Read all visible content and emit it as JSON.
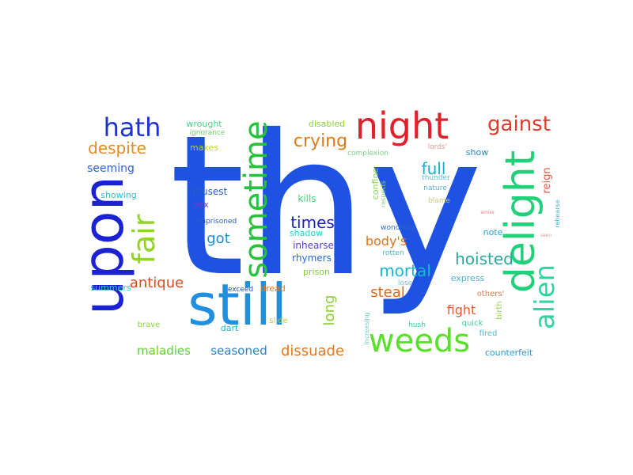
{
  "words": [
    {
      "text": "thy",
      "color": "#1e52e0"
    },
    {
      "text": "still",
      "color": "#1f8fe0"
    },
    {
      "text": "upon",
      "color": "#1a22d4"
    },
    {
      "text": "delight",
      "color": "#22d07a"
    },
    {
      "text": "night",
      "color": "#e0202a"
    },
    {
      "text": "sometime",
      "color": "#26c23a"
    },
    {
      "text": "weeds",
      "color": "#58e02a"
    },
    {
      "text": "alien",
      "color": "#2ed69a"
    },
    {
      "text": "fair",
      "color": "#8fd426"
    },
    {
      "text": "hath",
      "color": "#1a32d8"
    },
    {
      "text": "gainst",
      "color": "#e03a2a"
    },
    {
      "text": "crying",
      "color": "#e07a1a"
    },
    {
      "text": "despite",
      "color": "#e88a22"
    },
    {
      "text": "full",
      "color": "#1ab0c8"
    },
    {
      "text": "times",
      "color": "#1a22c0"
    },
    {
      "text": "hoisted",
      "color": "#2aa8a0"
    },
    {
      "text": "mortal",
      "color": "#1ab8d0"
    },
    {
      "text": "antique",
      "color": "#e04a1a"
    },
    {
      "text": "body's",
      "color": "#e0741a"
    },
    {
      "text": "steal",
      "color": "#e06a1a"
    },
    {
      "text": "dissuade",
      "color": "#e8761a"
    },
    {
      "text": "got",
      "color": "#1a90d8"
    },
    {
      "text": "long",
      "color": "#8ad032"
    },
    {
      "text": "fight",
      "color": "#e85a2a"
    },
    {
      "text": "seasoned",
      "color": "#2a82d0"
    },
    {
      "text": "maladies",
      "color": "#5ad42a"
    },
    {
      "text": "seeming",
      "color": "#2a64d4"
    },
    {
      "text": "reign",
      "color": "#e05a4a"
    },
    {
      "text": "confine",
      "color": "#8ad05a"
    },
    {
      "text": "refusest",
      "color": "#2a5ad0"
    },
    {
      "text": "wrought",
      "color": "#4acf8a"
    },
    {
      "text": "disabled",
      "color": "#8ad03a"
    },
    {
      "text": "makes",
      "color": "#c0d42a"
    },
    {
      "text": "showing",
      "color": "#2abcd6"
    },
    {
      "text": "show",
      "color": "#1a8ad0"
    },
    {
      "text": "kills",
      "color": "#4ad07a"
    },
    {
      "text": "vex",
      "color": "#7a3ad0"
    },
    {
      "text": "shadow",
      "color": "#2acfd0"
    },
    {
      "text": "inhearse",
      "color": "#5a3ad0"
    },
    {
      "text": "rhymers",
      "color": "#2a6ad0"
    },
    {
      "text": "prison",
      "color": "#7ad03a"
    },
    {
      "text": "note",
      "color": "#2aa0c8"
    },
    {
      "text": "express",
      "color": "#4ab0d0"
    },
    {
      "text": "summers",
      "color": "#2ad0b0"
    },
    {
      "text": "dart",
      "color": "#2ab0c8"
    },
    {
      "text": "counterfeit",
      "color": "#2a9ad0"
    },
    {
      "text": "dread",
      "color": "#e07a2a"
    },
    {
      "text": "birth",
      "color": "#9ad05a"
    },
    {
      "text": "brave",
      "color": "#8ad03a"
    },
    {
      "text": "slide",
      "color": "#aad04a"
    },
    {
      "text": "quick",
      "color": "#3ad0a0"
    },
    {
      "text": "fired",
      "color": "#4ab8d0"
    },
    {
      "text": "others'",
      "color": "#e07a4a"
    },
    {
      "text": "ignorance",
      "color": "#6ad06a"
    },
    {
      "text": "complexion",
      "color": "#7ad08a"
    },
    {
      "text": "thunder",
      "color": "#5ac0d0"
    },
    {
      "text": "respects",
      "color": "#8ad08a"
    },
    {
      "text": "nature",
      "color": "#5ab0d0"
    },
    {
      "text": "blame",
      "color": "#c8c87a"
    },
    {
      "text": "lords'",
      "color": "#e09a8a"
    },
    {
      "text": "wondrous",
      "color": "#2a6ad0"
    },
    {
      "text": "rotten",
      "color": "#4ab8c0"
    },
    {
      "text": "imprisoned",
      "color": "#2a5ad0"
    },
    {
      "text": "exceed",
      "color": "#1a4ad0"
    },
    {
      "text": "lose",
      "color": "#7ab8d0"
    },
    {
      "text": "increasing",
      "color": "#6ad0c0"
    },
    {
      "text": "hush",
      "color": "#3ad0b0"
    },
    {
      "text": "rehearse",
      "color": "#4ab8d0"
    },
    {
      "text": "amiss",
      "color": "#e07a8a"
    },
    {
      "text": "seen",
      "color": "#e0a0a0"
    }
  ]
}
